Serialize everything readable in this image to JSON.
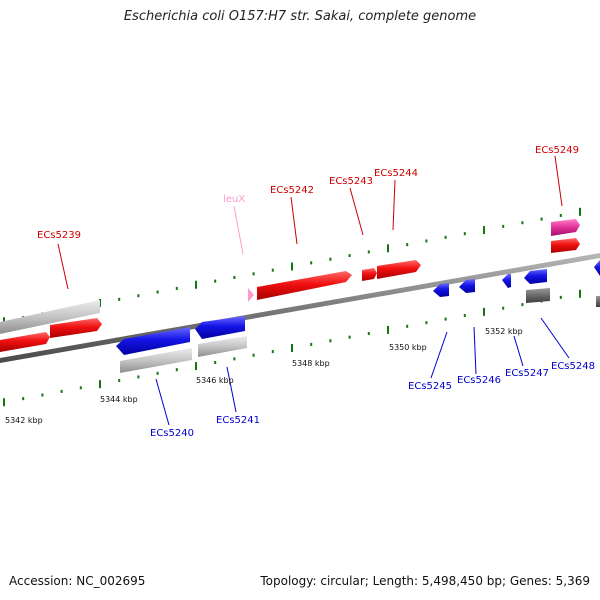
{
  "title": "Escherichia coli O157:H7 str. Sakai, complete genome",
  "footer": {
    "accession": "Accession: NC_002695",
    "summary": "Topology: circular; Length: 5,498,450 bp; Genes: 5,369"
  },
  "colors": {
    "forward_gene": "#ee1111",
    "reverse_gene": "#1a1ae6",
    "trna": "#ff99cc",
    "rrna": "#e0309a",
    "pseudo": "#c0c0c0",
    "dark_feature": "#6e6e6e",
    "backbone": "#7a7a7a",
    "tick": "#117711"
  },
  "scale_labels": [
    "5342 kbp",
    "5344 kbp",
    "5346 kbp",
    "5348 kbp",
    "5350 kbp",
    "5352 kbp"
  ],
  "gene_labels": {
    "forward": [
      "ECs5239",
      "leuX",
      "ECs5242",
      "ECs5243",
      "ECs5244",
      "ECs5249"
    ],
    "reverse": [
      "ECs5240",
      "ECs5241",
      "ECs5245",
      "ECs5246",
      "ECs5247",
      "ECs5248"
    ]
  }
}
